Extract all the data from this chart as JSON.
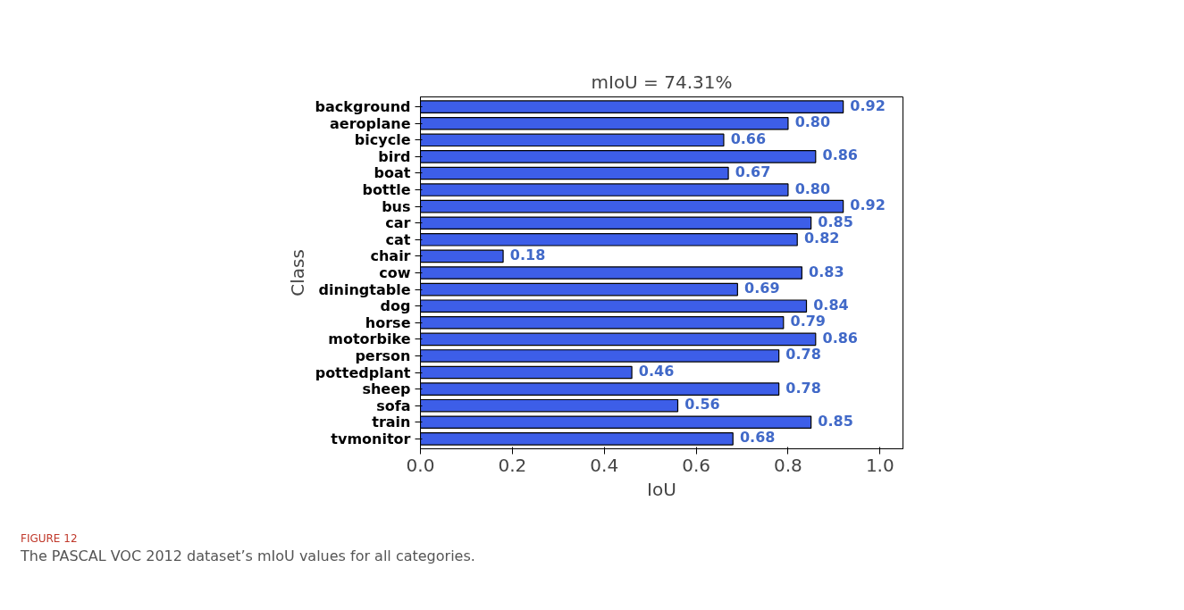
{
  "chart_data": {
    "type": "bar",
    "orientation": "horizontal",
    "title": "mIoU = 74.31%",
    "xlabel": "IoU",
    "ylabel": "Class",
    "categories": [
      "background",
      "aeroplane",
      "bicycle",
      "bird",
      "boat",
      "bottle",
      "bus",
      "car",
      "cat",
      "chair",
      "cow",
      "diningtable",
      "dog",
      "horse",
      "motorbike",
      "person",
      "pottedplant",
      "sheep",
      "sofa",
      "train",
      "tvmonitor"
    ],
    "values": [
      0.92,
      0.8,
      0.66,
      0.86,
      0.67,
      0.8,
      0.92,
      0.85,
      0.82,
      0.18,
      0.83,
      0.69,
      0.84,
      0.79,
      0.86,
      0.78,
      0.46,
      0.78,
      0.56,
      0.85,
      0.68
    ],
    "value_labels": [
      "0.92",
      "0.80",
      "0.66",
      "0.86",
      "0.67",
      "0.80",
      "0.92",
      "0.85",
      "0.82",
      "0.18",
      "0.83",
      "0.69",
      "0.84",
      "0.79",
      "0.86",
      "0.78",
      "0.46",
      "0.78",
      "0.56",
      "0.85",
      "0.68"
    ],
    "color": "#3d5ee8",
    "xlim": [
      0,
      1.05
    ],
    "xticks": [
      {
        "value": 0,
        "label": "0.0"
      },
      0.2,
      0.4,
      0.6,
      0.8,
      {
        "value": 1,
        "label": "1.0"
      }
    ],
    "grid": false,
    "annotations": [
      "FIGURE 12",
      "The PASCAL VOC 2012 dataset’s mIoU values for all categories."
    ]
  }
}
